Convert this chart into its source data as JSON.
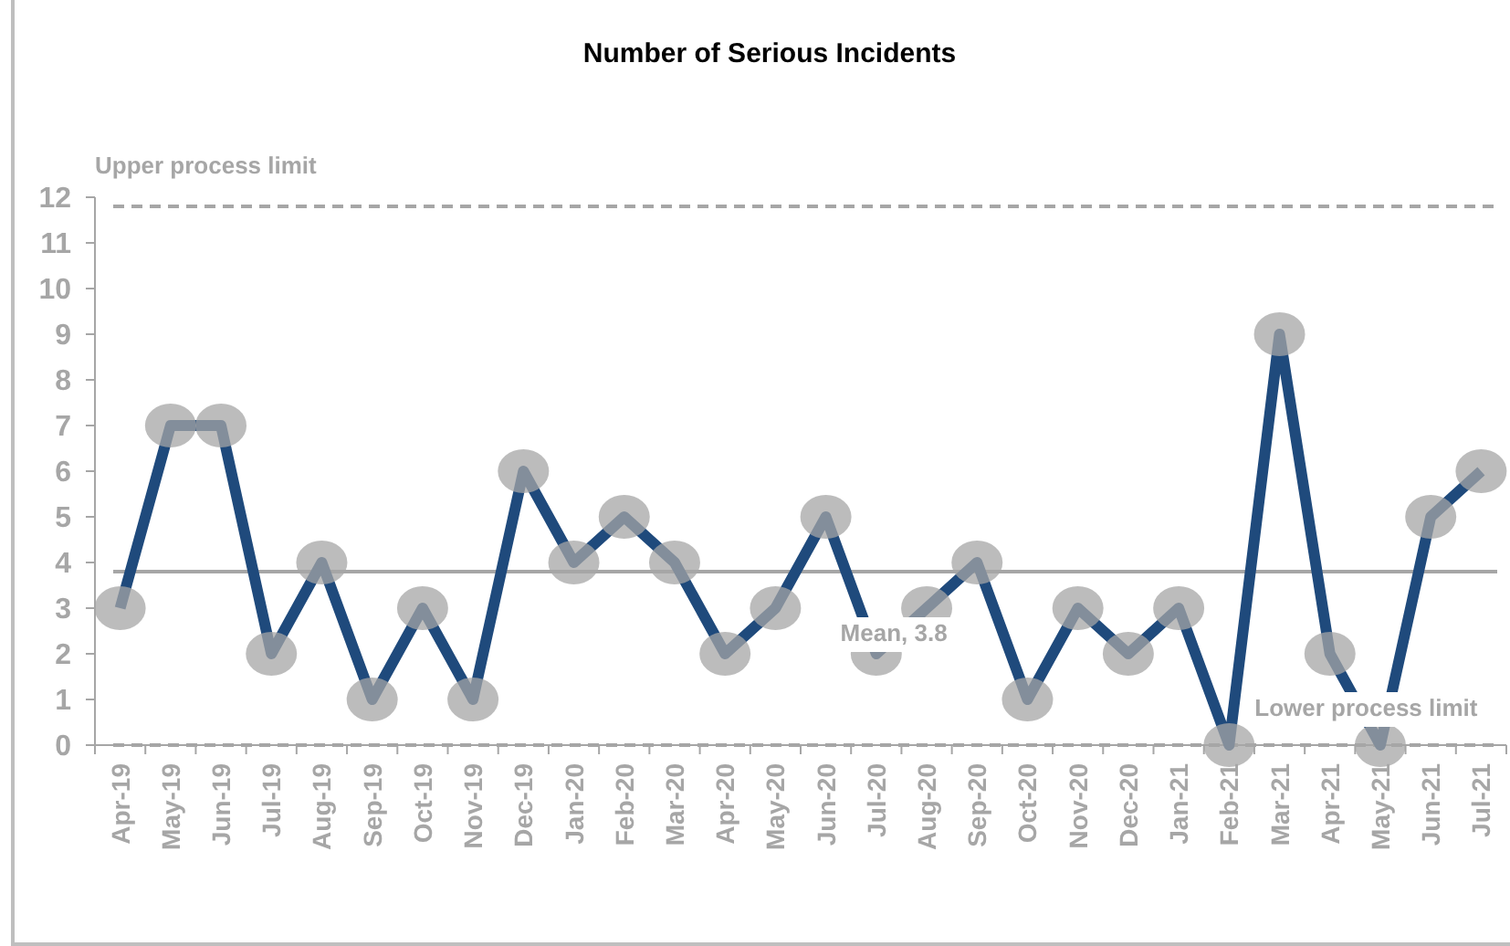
{
  "chart_data": {
    "type": "line",
    "title": "Number of Serious Incidents",
    "categories": [
      "Apr-19",
      "May-19",
      "Jun-19",
      "Jul-19",
      "Aug-19",
      "Sep-19",
      "Oct-19",
      "Nov-19",
      "Dec-19",
      "Jan-20",
      "Feb-20",
      "Mar-20",
      "Apr-20",
      "May-20",
      "Jun-20",
      "Jul-20",
      "Aug-20",
      "Sep-20",
      "Oct-20",
      "Nov-20",
      "Dec-20",
      "Jan-21",
      "Feb-21",
      "Mar-21",
      "Apr-21",
      "May-21",
      "Jun-21",
      "Jul-21"
    ],
    "series": [
      {
        "color": "#1f4a7c",
        "values": [
          3,
          7,
          7,
          2,
          4,
          1,
          3,
          1,
          6,
          4,
          5,
          4,
          2,
          3,
          5,
          2,
          3,
          4,
          1,
          3,
          2,
          3,
          0,
          9,
          2,
          0,
          5,
          6
        ]
      }
    ],
    "ylim": [
      0,
      12
    ],
    "yticks": [
      0,
      1,
      2,
      3,
      4,
      5,
      6,
      7,
      8,
      9,
      10,
      11,
      12
    ],
    "ref_lines": [
      {
        "axis": "y",
        "value": 11.8,
        "label": "Upper process limit",
        "color": "#a6a6a6",
        "line_style": "dashed"
      },
      {
        "axis": "y",
        "value": 3.8,
        "label": "Mean, 3.8",
        "color": "#a6a6a6",
        "line_style": "solid"
      },
      {
        "axis": "y",
        "value": 0,
        "label": "Lower process limit",
        "color": "#a6a6a6",
        "line_style": "dashed"
      }
    ],
    "grid": false,
    "marker": "circle",
    "line_style": "solid"
  }
}
